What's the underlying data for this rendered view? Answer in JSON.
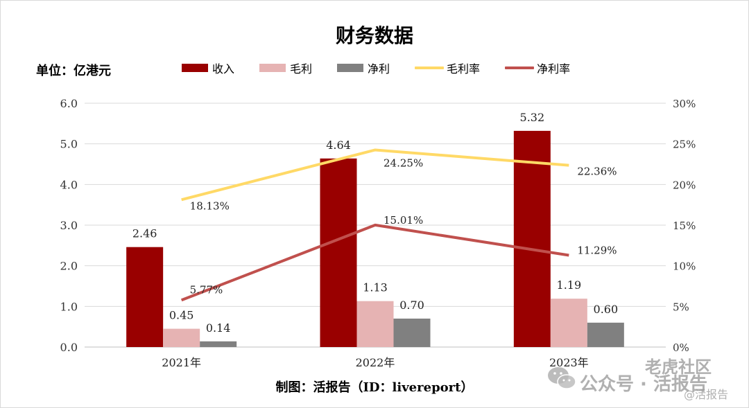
{
  "chart_data": {
    "type": "bar",
    "title": "财务数据",
    "unit_label": "单位：亿港元",
    "categories": [
      "2021年",
      "2022年",
      "2023年"
    ],
    "ylim": [
      0,
      6
    ],
    "y2lim": [
      0,
      30
    ],
    "y_ticks": [
      "0.0",
      "1.0",
      "2.0",
      "3.0",
      "4.0",
      "5.0",
      "6.0"
    ],
    "y2_ticks": [
      "0%",
      "5%",
      "10%",
      "15%",
      "20%",
      "25%",
      "30%"
    ],
    "bar_series": [
      {
        "name": "收入",
        "color": "#990000",
        "values": [
          2.46,
          4.64,
          5.32
        ],
        "labels": [
          "2.46",
          "4.64",
          "5.32"
        ]
      },
      {
        "name": "毛利",
        "color": "#e6b3b3",
        "values": [
          0.45,
          1.13,
          1.19
        ],
        "labels": [
          "0.45",
          "1.13",
          "1.19"
        ]
      },
      {
        "name": "净利",
        "color": "#808080",
        "values": [
          0.14,
          0.7,
          0.6
        ],
        "labels": [
          "0.14",
          "0.70",
          "0.60"
        ]
      }
    ],
    "line_series": [
      {
        "name": "毛利率",
        "color": "#ffd966",
        "values": [
          18.13,
          24.25,
          22.36
        ],
        "labels": [
          "18.13%",
          "24.25%",
          "22.36%"
        ]
      },
      {
        "name": "净利率",
        "color": "#c0504d",
        "values": [
          5.77,
          15.01,
          11.29
        ],
        "labels": [
          "5.77%",
          "15.01%",
          "11.29%"
        ]
      }
    ],
    "legend_position": "top",
    "grid": true
  },
  "credit": "制图：活报告（ID：livereport）",
  "watermark": {
    "main": "公众号 · 活报告",
    "top": "老虎社区",
    "sub": "@活报告",
    "logo_icon": "wechat-icon"
  }
}
